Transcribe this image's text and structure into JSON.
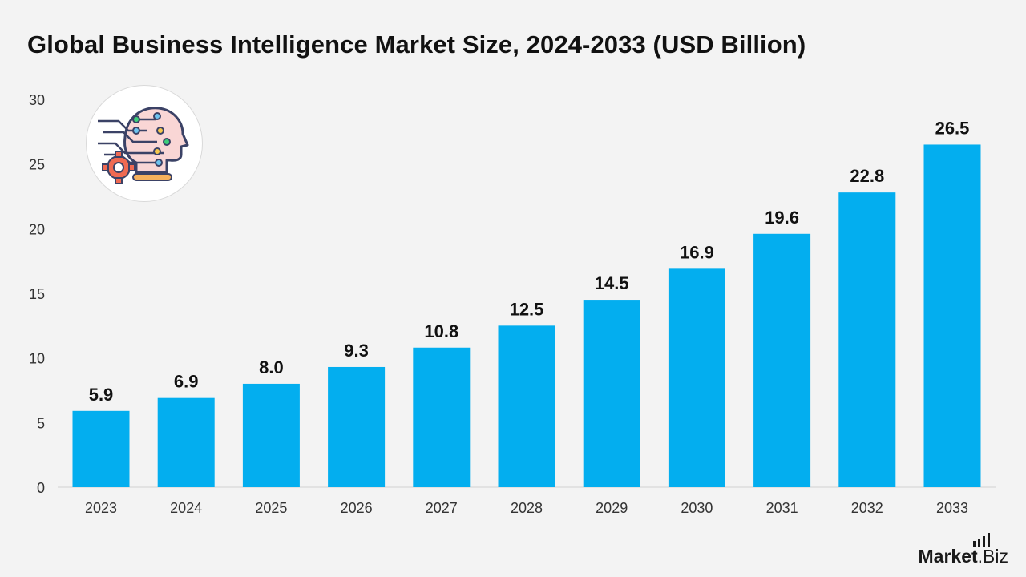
{
  "chart_data": {
    "type": "bar",
    "title": "Global Business Intelligence Market Size, 2024-2033 (USD Billion)",
    "xlabel": "",
    "ylabel": "",
    "categories": [
      "2023",
      "2024",
      "2025",
      "2026",
      "2027",
      "2028",
      "2029",
      "2030",
      "2031",
      "2032",
      "2033"
    ],
    "values": [
      5.9,
      6.9,
      8.0,
      9.3,
      10.8,
      12.5,
      14.5,
      16.9,
      19.6,
      22.8,
      26.5
    ],
    "value_labels": [
      "5.9",
      "6.9",
      "8.0",
      "9.3",
      "10.8",
      "12.5",
      "14.5",
      "16.9",
      "19.6",
      "22.8",
      "26.5"
    ],
    "ylim": [
      0,
      30
    ],
    "yticks": [
      0,
      5,
      10,
      15,
      20,
      25,
      30
    ],
    "grid": false,
    "bar_color": "#03aeef"
  },
  "brand": {
    "name_bold": "Market",
    "name_rest": ".Biz"
  },
  "logo": {
    "icon": "ai-head-gear-icon"
  }
}
